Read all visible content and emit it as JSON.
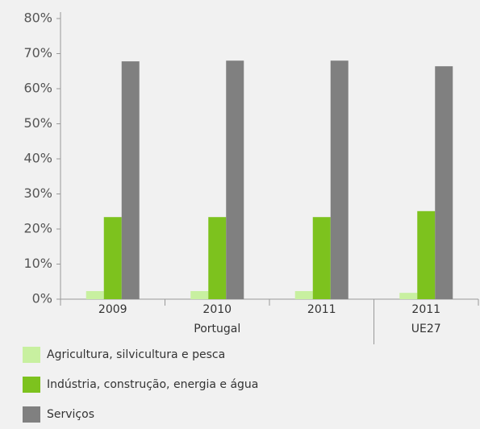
{
  "chart_data": {
    "type": "bar",
    "categories": [
      "2009",
      "2010",
      "2011",
      "2011"
    ],
    "groups": [
      {
        "name": "Portugal",
        "size": 3
      },
      {
        "name": "UE27",
        "size": 1
      }
    ],
    "series": [
      {
        "name": "Agricultura, silvicultura e pesca",
        "color": "#c8f0a0",
        "values": [
          2.3,
          2.3,
          2.3,
          1.8
        ]
      },
      {
        "name": "Indústria, construção, energia e água",
        "color": "#7dc21e",
        "values": [
          23.4,
          23.4,
          23.4,
          25.1
        ]
      },
      {
        "name": "Serviços",
        "color": "#808080",
        "values": [
          67.8,
          68.0,
          68.0,
          66.4
        ]
      }
    ],
    "ylim": [
      0,
      80
    ],
    "yticks": [
      {
        "value": 0,
        "label": "0%"
      },
      {
        "value": 10,
        "label": "10%"
      },
      {
        "value": 20,
        "label": "20%"
      },
      {
        "value": 30,
        "label": "30%"
      },
      {
        "value": 40,
        "label": "40%"
      },
      {
        "value": 50,
        "label": "50%"
      },
      {
        "value": 60,
        "label": "60%"
      },
      {
        "value": 70,
        "label": "70%"
      },
      {
        "value": 80,
        "label": "80%"
      }
    ],
    "grid": false
  }
}
